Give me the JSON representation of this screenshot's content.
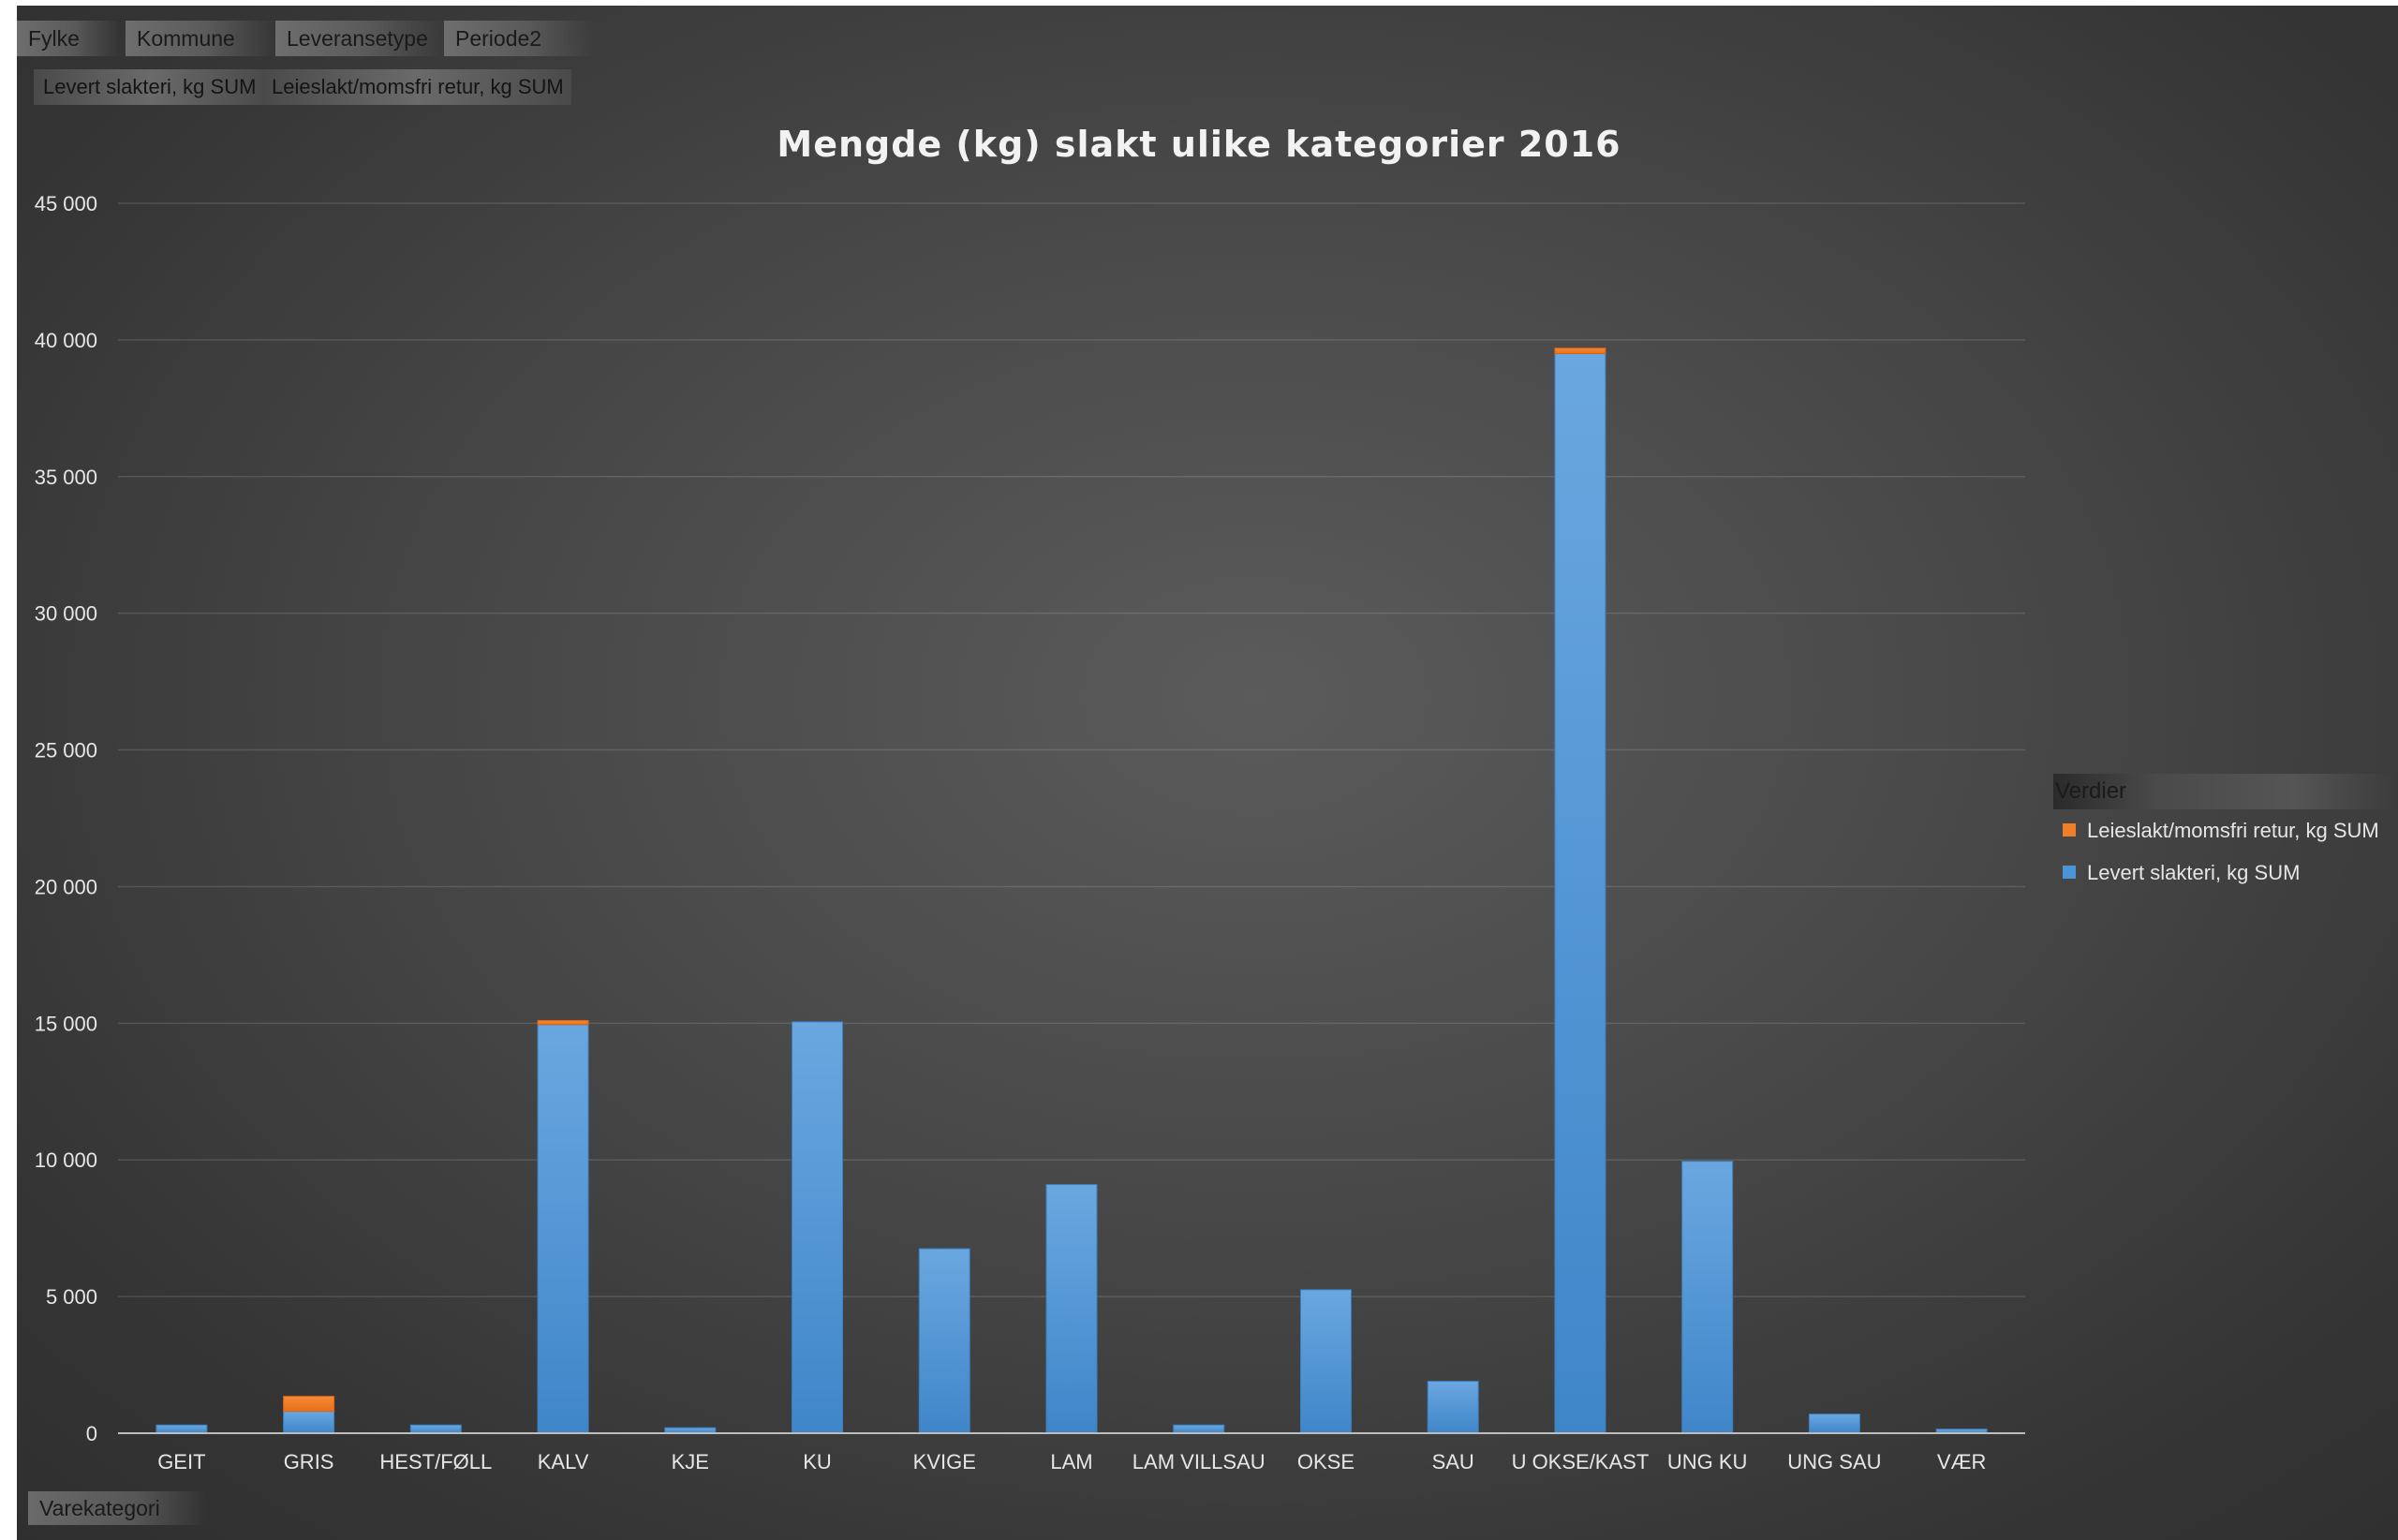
{
  "filters": {
    "fylke": "Fylke",
    "kommune": "Kommune",
    "leveransetype": "Leveransetype",
    "periode": "Periode2"
  },
  "values_area": {
    "levert": "Levert slakteri, kg SUM",
    "leieslakt": "Leieslakt/momsfri retur, kg SUM"
  },
  "legend": {
    "header": "Verdier",
    "items": [
      {
        "label": "Leieslakt/momsfri retur, kg SUM",
        "color": "#f07f2a"
      },
      {
        "label": "Levert slakteri, kg SUM",
        "color": "#4d94d6"
      }
    ]
  },
  "axis_field": "Varekategori",
  "chart_data": {
    "type": "bar",
    "stacked": true,
    "title": "Mengde (kg) slakt ulike kategorier 2016",
    "xlabel": "",
    "ylabel": "",
    "ylim": [
      0,
      45000
    ],
    "yticks": [
      "0",
      "5 000",
      "10 000",
      "15 000",
      "20 000",
      "25 000",
      "30 000",
      "35 000",
      "40 000",
      "45 000"
    ],
    "ytick_values": [
      0,
      5000,
      10000,
      15000,
      20000,
      25000,
      30000,
      35000,
      40000,
      45000
    ],
    "grid": true,
    "legend_position": "right",
    "categories": [
      "GEIT",
      "GRIS",
      "HEST/FØLL",
      "KALV",
      "KJE",
      "KU",
      "KVIGE",
      "LAM",
      "LAM VILLSAU",
      "OKSE",
      "SAU",
      "U OKSE/KAST",
      "UNG KU",
      "UNG SAU",
      "VÆR"
    ],
    "series": [
      {
        "name": "Levert slakteri, kg SUM",
        "color": "#4d94d6",
        "values": [
          300,
          800,
          300,
          14950,
          200,
          15050,
          6750,
          9100,
          300,
          5250,
          1900,
          39500,
          9950,
          700,
          150
        ]
      },
      {
        "name": "Leieslakt/momsfri retur, kg SUM",
        "color": "#f07f2a",
        "values": [
          0,
          550,
          0,
          150,
          0,
          0,
          0,
          0,
          0,
          0,
          0,
          200,
          0,
          0,
          0
        ]
      }
    ]
  }
}
